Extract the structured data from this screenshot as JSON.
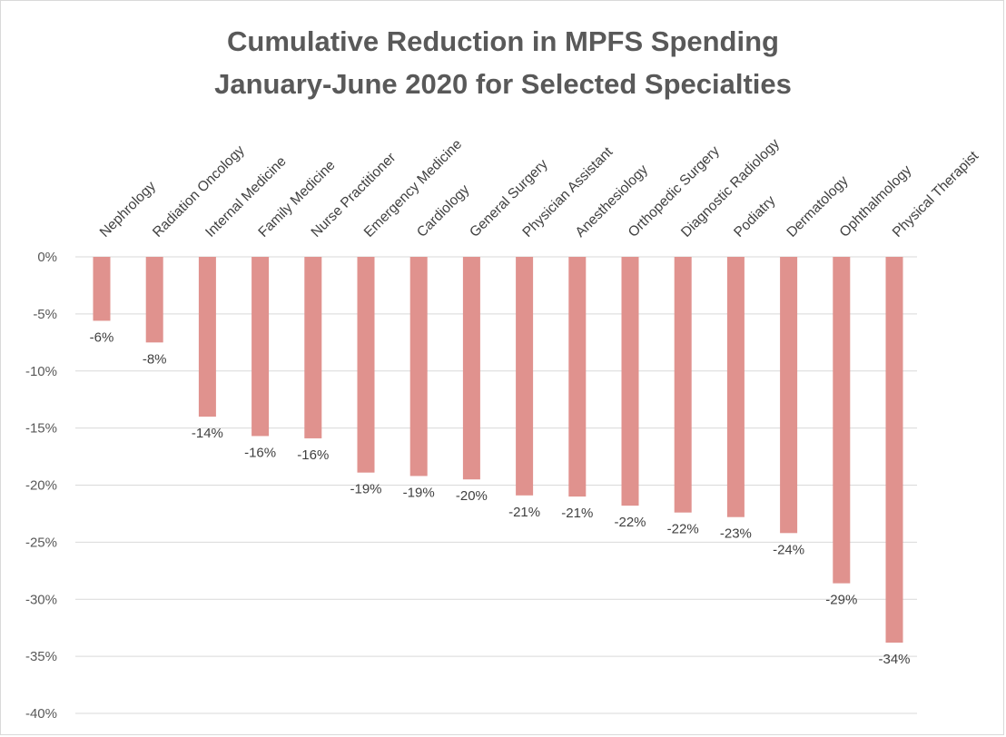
{
  "chart_data": {
    "type": "bar",
    "title": "Cumulative Reduction in MPFS Spending",
    "subtitle": "January-June 2020 for Selected Specialties",
    "xlabel": "",
    "ylabel": "",
    "categories": [
      "Nephrology",
      "Radiation Oncology",
      "Internal Medicine",
      "Family Medicine",
      "Nurse Practitioner",
      "Emergency Medicine",
      "Cardiology",
      "General Surgery",
      "Physician Assistant",
      "Anesthesiology",
      "Orthopedic Surgery",
      "Diagnostic Radiology",
      "Podiatry",
      "Dermatology",
      "Ophthalmology",
      "Physical Therapist"
    ],
    "values": [
      -5.6,
      -7.5,
      -14.0,
      -15.7,
      -15.9,
      -18.9,
      -19.2,
      -19.5,
      -20.9,
      -21.0,
      -21.8,
      -22.4,
      -22.8,
      -24.2,
      -28.6,
      -33.8
    ],
    "data_labels": [
      "-6%",
      "-8%",
      "-14%",
      "-16%",
      "-16%",
      "-19%",
      "-19%",
      "-20%",
      "-21%",
      "-21%",
      "-22%",
      "-22%",
      "-23%",
      "-24%",
      "-29%",
      "-34%"
    ],
    "y_ticks": [
      0,
      -5,
      -10,
      -15,
      -20,
      -25,
      -30,
      -35,
      -40
    ],
    "y_tick_labels": [
      "0%",
      "-5%",
      "-10%",
      "-15%",
      "-20%",
      "-25%",
      "-30%",
      "-35%",
      "-40%"
    ],
    "ylim": [
      -40,
      0
    ],
    "category_axis_position": "top",
    "category_label_rotation": "diagonal",
    "grid": true,
    "legend": "none",
    "bar_color": "#e0928e",
    "grid_color": "#d9d9d9",
    "text_color": "#595959"
  }
}
